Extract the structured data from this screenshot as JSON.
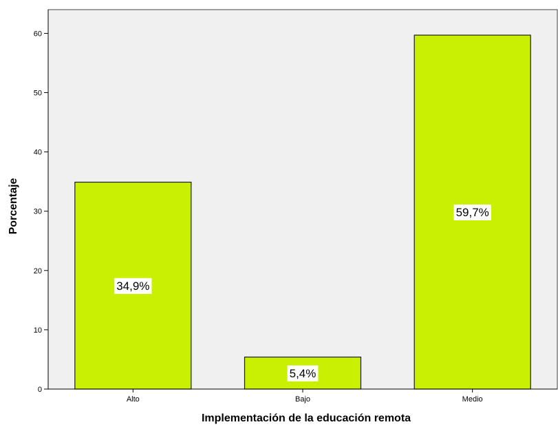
{
  "chart_data": {
    "type": "bar",
    "categories": [
      "Alto",
      "Bajo",
      "Medio"
    ],
    "values": [
      34.9,
      5.4,
      59.7
    ],
    "data_labels": [
      "34,9%",
      "5,4%",
      "59,7%"
    ],
    "xlabel": "Implementación de la educación remota",
    "ylabel": "Porcentaje",
    "ylim": [
      0,
      64
    ],
    "yticks": [
      0,
      10,
      20,
      30,
      40,
      50,
      60
    ],
    "grid": false,
    "colors": {
      "bar_fill": "#c8f000",
      "bar_stroke": "#1a1a1a",
      "plot_background": "#f0f0f0",
      "label_background": "#ffffff"
    }
  }
}
